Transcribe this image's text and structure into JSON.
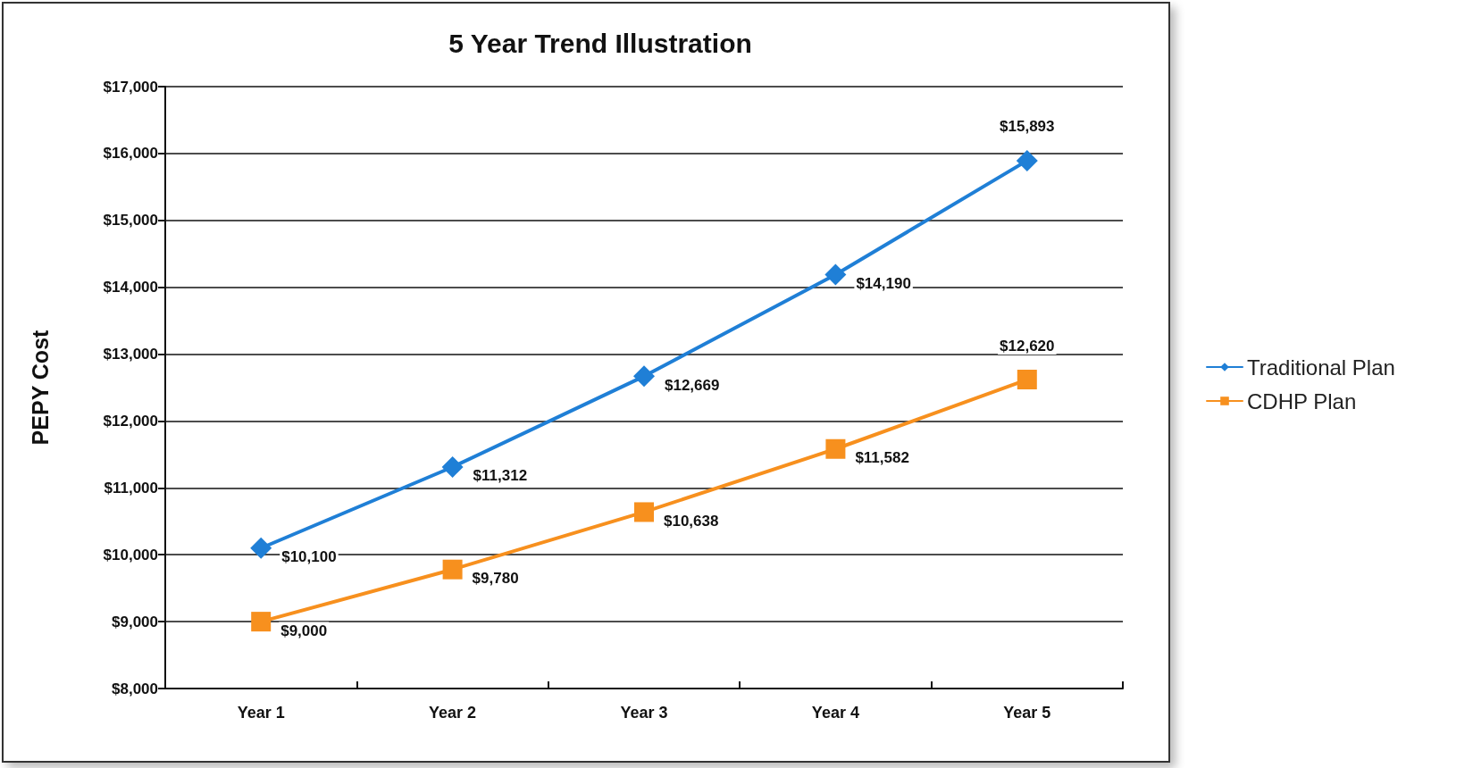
{
  "chart_data": {
    "type": "line",
    "title": "5 Year Trend Illustration",
    "ylabel": "PEPY Cost",
    "categories": [
      "Year 1",
      "Year 2",
      "Year 3",
      "Year 4",
      "Year 5"
    ],
    "series": [
      {
        "name": "Traditional Plan",
        "color": "#1f7fd6",
        "marker": "diamond",
        "values": [
          10100,
          11312,
          12669,
          14190,
          15893
        ],
        "value_labels": [
          "$10,100",
          "$11,312",
          "$12,669",
          "$14,190",
          "$15,893"
        ]
      },
      {
        "name": "CDHP Plan",
        "color": "#f7901e",
        "marker": "square",
        "values": [
          9000,
          9780,
          10638,
          11582,
          12620
        ],
        "value_labels": [
          "$9,000",
          "$9,780",
          "$10,638",
          "$11,582",
          "$12,620"
        ]
      }
    ],
    "ylim": [
      8000,
      17000
    ],
    "yticks": [
      {
        "value": 8000,
        "label": "$8,000"
      },
      {
        "value": 9000,
        "label": "$9,000"
      },
      {
        "value": 10000,
        "label": "$10,000"
      },
      {
        "value": 11000,
        "label": "$11,000"
      },
      {
        "value": 12000,
        "label": "$12,000"
      },
      {
        "value": 13000,
        "label": "$13,000"
      },
      {
        "value": 14000,
        "label": "$14,000"
      },
      {
        "value": 15000,
        "label": "$15,000"
      },
      {
        "value": 16000,
        "label": "$16,000"
      },
      {
        "value": 17000,
        "label": "$17,000"
      }
    ],
    "grid": "y",
    "legend": "right",
    "line_style": "solid"
  }
}
